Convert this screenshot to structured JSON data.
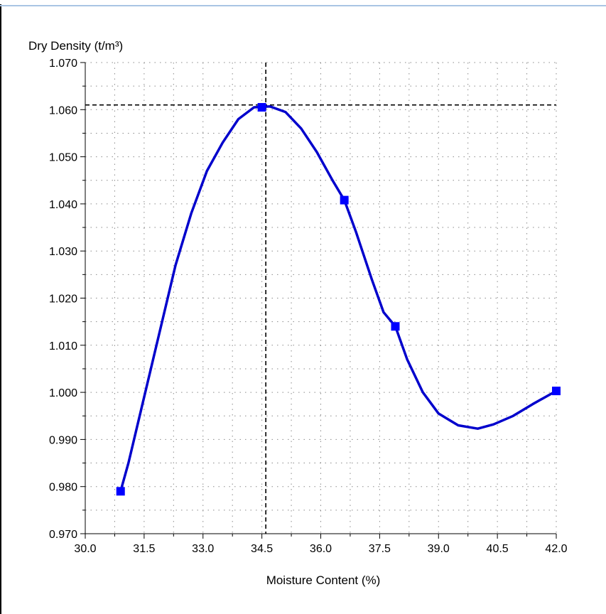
{
  "chart_data": {
    "type": "line",
    "title": "",
    "ylabel": "Dry Density (t/m³)",
    "xlabel": "Moisture Content (%)",
    "xlim": [
      30.0,
      42.0
    ],
    "ylim": [
      0.97,
      1.07
    ],
    "xticks": [
      "30.0",
      "31.5",
      "33.0",
      "34.5",
      "36.0",
      "37.5",
      "39.0",
      "40.5",
      "42.0"
    ],
    "yticks": [
      "0.970",
      "0.980",
      "0.990",
      "1.000",
      "1.010",
      "1.020",
      "1.030",
      "1.040",
      "1.050",
      "1.060",
      "1.070"
    ],
    "grid": true,
    "series": [
      {
        "color": "#0000cc",
        "marker_color": "#0000ff",
        "points": [
          {
            "x": 30.9,
            "y": 0.979
          },
          {
            "x": 34.5,
            "y": 1.0605
          },
          {
            "x": 36.6,
            "y": 1.0408
          },
          {
            "x": 37.9,
            "y": 1.014
          },
          {
            "x": 42.0,
            "y": 1.0003
          }
        ],
        "curve": [
          [
            30.9,
            0.979
          ],
          [
            31.1,
            0.985
          ],
          [
            31.5,
            0.999
          ],
          [
            31.9,
            1.013
          ],
          [
            32.3,
            1.027
          ],
          [
            32.7,
            1.038
          ],
          [
            33.1,
            1.047
          ],
          [
            33.5,
            1.053
          ],
          [
            33.9,
            1.058
          ],
          [
            34.3,
            1.0605
          ],
          [
            34.7,
            1.0607
          ],
          [
            35.1,
            1.0595
          ],
          [
            35.5,
            1.056
          ],
          [
            35.9,
            1.051
          ],
          [
            36.3,
            1.045
          ],
          [
            36.6,
            1.0408
          ],
          [
            36.9,
            1.034
          ],
          [
            37.3,
            1.024
          ],
          [
            37.6,
            1.017
          ],
          [
            37.9,
            1.014
          ],
          [
            38.2,
            1.007
          ],
          [
            38.6,
            1.0
          ],
          [
            39.0,
            0.9955
          ],
          [
            39.5,
            0.993
          ],
          [
            40.0,
            0.9923
          ],
          [
            40.4,
            0.9932
          ],
          [
            40.9,
            0.995
          ],
          [
            41.4,
            0.9975
          ],
          [
            42.0,
            1.0003
          ]
        ]
      }
    ],
    "reference_x": 34.6,
    "reference_y": 1.061
  }
}
